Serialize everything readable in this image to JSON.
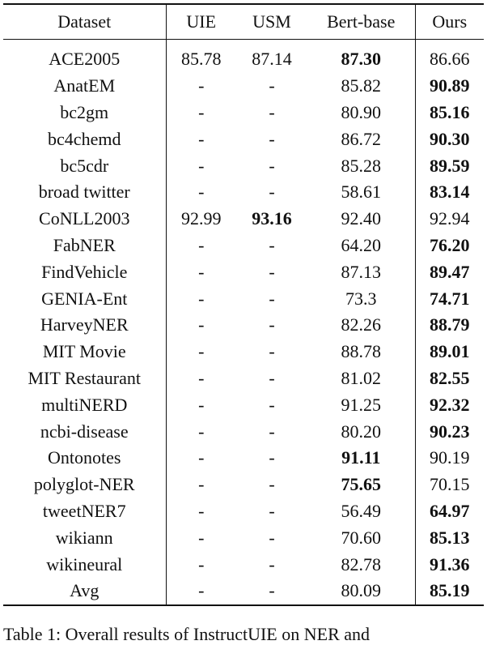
{
  "table": {
    "header": [
      "Dataset",
      "UIE",
      "USM",
      "Bert-base",
      "Ours"
    ],
    "rows": [
      {
        "cells": [
          "ACE2005",
          "85.78",
          "87.14",
          "87.30",
          "86.66"
        ],
        "bold": [
          3
        ]
      },
      {
        "cells": [
          "AnatEM",
          "-",
          "-",
          "85.82",
          "90.89"
        ],
        "bold": [
          4
        ]
      },
      {
        "cells": [
          "bc2gm",
          "-",
          "-",
          "80.90",
          "85.16"
        ],
        "bold": [
          4
        ]
      },
      {
        "cells": [
          "bc4chemd",
          "-",
          "-",
          "86.72",
          "90.30"
        ],
        "bold": [
          4
        ]
      },
      {
        "cells": [
          "bc5cdr",
          "-",
          "-",
          "85.28",
          "89.59"
        ],
        "bold": [
          4
        ]
      },
      {
        "cells": [
          "broad twitter",
          "-",
          "-",
          "58.61",
          "83.14"
        ],
        "bold": [
          4
        ]
      },
      {
        "cells": [
          "CoNLL2003",
          "92.99",
          "93.16",
          "92.40",
          "92.94"
        ],
        "bold": [
          2
        ]
      },
      {
        "cells": [
          "FabNER",
          "-",
          "-",
          "64.20",
          "76.20"
        ],
        "bold": [
          4
        ]
      },
      {
        "cells": [
          "FindVehicle",
          "-",
          "-",
          "87.13",
          "89.47"
        ],
        "bold": [
          4
        ]
      },
      {
        "cells": [
          "GENIA-Ent",
          "-",
          "-",
          "73.3",
          "74.71"
        ],
        "bold": [
          4
        ]
      },
      {
        "cells": [
          "HarveyNER",
          "-",
          "-",
          "82.26",
          "88.79"
        ],
        "bold": [
          4
        ]
      },
      {
        "cells": [
          "MIT Movie",
          "-",
          "-",
          "88.78",
          "89.01"
        ],
        "bold": [
          4
        ]
      },
      {
        "cells": [
          "MIT Restaurant",
          "-",
          "-",
          "81.02",
          "82.55"
        ],
        "bold": [
          4
        ]
      },
      {
        "cells": [
          "multiNERD",
          "-",
          "-",
          "91.25",
          "92.32"
        ],
        "bold": [
          4
        ]
      },
      {
        "cells": [
          "ncbi-disease",
          "-",
          "-",
          "80.20",
          "90.23"
        ],
        "bold": [
          4
        ]
      },
      {
        "cells": [
          "Ontonotes",
          "-",
          "-",
          "91.11",
          "90.19"
        ],
        "bold": [
          3
        ]
      },
      {
        "cells": [
          "polyglot-NER",
          "-",
          "-",
          "75.65",
          "70.15"
        ],
        "bold": [
          3
        ]
      },
      {
        "cells": [
          "tweetNER7",
          "-",
          "-",
          "56.49",
          "64.97"
        ],
        "bold": [
          4
        ]
      },
      {
        "cells": [
          "wikiann",
          "-",
          "-",
          "70.60",
          "85.13"
        ],
        "bold": [
          4
        ]
      },
      {
        "cells": [
          "wikineural",
          "-",
          "-",
          "82.78",
          "91.36"
        ],
        "bold": [
          4
        ]
      },
      {
        "cells": [
          "Avg",
          "-",
          "-",
          "80.09",
          "85.19"
        ],
        "bold": [
          4
        ]
      }
    ]
  },
  "caption": "Table 1: Overall results of InstructUIE on NER and"
}
